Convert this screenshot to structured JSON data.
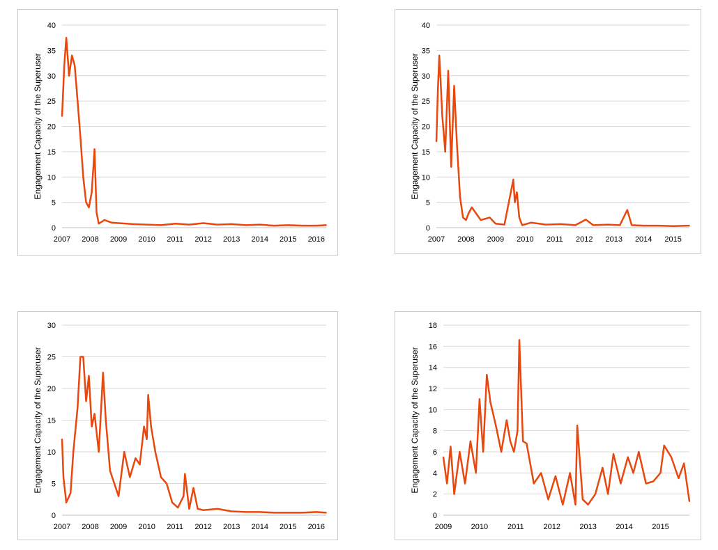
{
  "colors": {
    "series": "#e8470e",
    "grid": "#d9d9d9",
    "axis": "#bfbfbf"
  },
  "chart_data": [
    {
      "type": "line",
      "ylabel": "Engagement Capacity of the Superuser",
      "xlim": [
        2007.0,
        2016.35
      ],
      "ylim": [
        0,
        40
      ],
      "yticks": [
        0,
        5,
        10,
        15,
        20,
        25,
        30,
        35,
        40
      ],
      "xticks": [
        2007,
        2008,
        2009,
        2010,
        2011,
        2012,
        2013,
        2014,
        2015,
        2016
      ],
      "grid": true,
      "series": [
        {
          "x": [
            2007.0,
            2007.08,
            2007.15,
            2007.25,
            2007.35,
            2007.45,
            2007.55,
            2007.65,
            2007.75,
            2007.85,
            2007.95,
            2008.05,
            2008.15,
            2008.22,
            2008.3,
            2008.5,
            2008.75,
            2009.0,
            2009.5,
            2010.0,
            2010.5,
            2011.0,
            2011.5,
            2012.0,
            2012.5,
            2013.0,
            2013.5,
            2014.0,
            2014.5,
            2015.0,
            2015.5,
            2016.0,
            2016.35
          ],
          "y": [
            22,
            32,
            37.5,
            30,
            34,
            32,
            25,
            18,
            10,
            5,
            4,
            7,
            15.5,
            3,
            0.8,
            1.5,
            1.0,
            0.9,
            0.7,
            0.6,
            0.5,
            0.8,
            0.6,
            0.9,
            0.6,
            0.7,
            0.5,
            0.6,
            0.4,
            0.5,
            0.4,
            0.4,
            0.5
          ]
        }
      ]
    },
    {
      "type": "line",
      "ylabel": "Engagement Capacity of the Superuser",
      "xlim": [
        2007.0,
        2015.55
      ],
      "ylim": [
        0,
        40
      ],
      "yticks": [
        0,
        5,
        10,
        15,
        20,
        25,
        30,
        35,
        40
      ],
      "xticks": [
        2007,
        2008,
        2009,
        2010,
        2011,
        2012,
        2013,
        2014,
        2015
      ],
      "grid": true,
      "series": [
        {
          "x": [
            2007.0,
            2007.05,
            2007.1,
            2007.15,
            2007.2,
            2007.3,
            2007.4,
            2007.5,
            2007.6,
            2007.7,
            2007.8,
            2007.9,
            2008.0,
            2008.1,
            2008.2,
            2008.5,
            2008.8,
            2009.0,
            2009.3,
            2009.6,
            2009.65,
            2009.72,
            2009.8,
            2009.9,
            2010.2,
            2010.7,
            2011.2,
            2011.7,
            2012.05,
            2012.3,
            2012.8,
            2013.2,
            2013.45,
            2013.6,
            2014.0,
            2014.5,
            2015.0,
            2015.55
          ],
          "y": [
            17,
            27,
            34,
            28,
            22,
            15,
            31,
            12,
            28,
            16,
            6,
            2,
            1.5,
            3,
            4,
            1.5,
            2,
            0.8,
            0.6,
            9.5,
            5,
            7,
            2,
            0.5,
            1,
            0.6,
            0.7,
            0.5,
            1.6,
            0.5,
            0.6,
            0.5,
            3.5,
            0.5,
            0.4,
            0.4,
            0.3,
            0.4
          ]
        }
      ]
    },
    {
      "type": "line",
      "ylabel": "Engagement Capacity of the Superuser",
      "xlim": [
        2007.0,
        2016.35
      ],
      "ylim": [
        0,
        30
      ],
      "yticks": [
        0,
        5,
        10,
        15,
        20,
        25,
        30
      ],
      "xticks": [
        2007,
        2008,
        2009,
        2010,
        2011,
        2012,
        2013,
        2014,
        2015,
        2016
      ],
      "grid": true,
      "series": [
        {
          "x": [
            2007.0,
            2007.05,
            2007.15,
            2007.3,
            2007.4,
            2007.55,
            2007.65,
            2007.75,
            2007.85,
            2007.95,
            2008.05,
            2008.15,
            2008.3,
            2008.45,
            2008.55,
            2008.7,
            2008.85,
            2009.0,
            2009.2,
            2009.4,
            2009.6,
            2009.75,
            2009.9,
            2010.0,
            2010.05,
            2010.15,
            2010.3,
            2010.5,
            2010.7,
            2010.9,
            2011.1,
            2011.3,
            2011.35,
            2011.5,
            2011.65,
            2011.8,
            2012.0,
            2012.5,
            2013.0,
            2013.5,
            2014.0,
            2014.5,
            2015.0,
            2015.5,
            2016.0,
            2016.35
          ],
          "y": [
            12,
            6,
            2,
            3.5,
            10,
            17,
            25,
            25,
            18,
            22,
            14,
            16,
            10,
            22.5,
            15,
            7,
            5,
            3,
            10,
            6,
            9,
            8,
            14,
            12,
            19,
            14,
            10,
            6,
            5,
            2,
            1.2,
            3,
            6.5,
            1,
            4.3,
            1,
            0.8,
            1,
            0.6,
            0.5,
            0.5,
            0.4,
            0.4,
            0.4,
            0.5,
            0.4
          ]
        }
      ]
    },
    {
      "type": "line",
      "ylabel": "Engagement Capacity of the Superuser",
      "xlim": [
        2009.0,
        2015.8
      ],
      "ylim": [
        0,
        18
      ],
      "yticks": [
        0,
        2,
        4,
        6,
        8,
        10,
        12,
        14,
        16,
        18
      ],
      "xticks": [
        2009,
        2010,
        2011,
        2012,
        2013,
        2014,
        2015
      ],
      "grid": true,
      "series": [
        {
          "x": [
            2009.0,
            2009.1,
            2009.2,
            2009.3,
            2009.45,
            2009.6,
            2009.75,
            2009.9,
            2010.0,
            2010.1,
            2010.2,
            2010.3,
            2010.45,
            2010.6,
            2010.75,
            2010.85,
            2010.95,
            2011.05,
            2011.1,
            2011.2,
            2011.3,
            2011.5,
            2011.7,
            2011.9,
            2012.1,
            2012.3,
            2012.5,
            2012.65,
            2012.7,
            2012.85,
            2013.0,
            2013.2,
            2013.4,
            2013.55,
            2013.7,
            2013.9,
            2014.1,
            2014.25,
            2014.4,
            2014.6,
            2014.8,
            2015.0,
            2015.1,
            2015.3,
            2015.5,
            2015.65,
            2015.8
          ],
          "y": [
            5.5,
            3,
            6.5,
            2,
            6,
            3,
            7,
            4,
            11,
            6,
            13.3,
            10.7,
            8.5,
            6,
            9,
            7,
            6,
            8,
            16.6,
            7,
            6.8,
            3,
            4,
            1.5,
            3.7,
            1,
            4,
            1,
            8.5,
            1.5,
            1,
            2,
            4.5,
            2,
            5.8,
            3,
            5.5,
            4,
            6,
            3,
            3.2,
            4,
            6.6,
            5.5,
            3.5,
            4.9,
            1.3
          ]
        }
      ]
    }
  ]
}
